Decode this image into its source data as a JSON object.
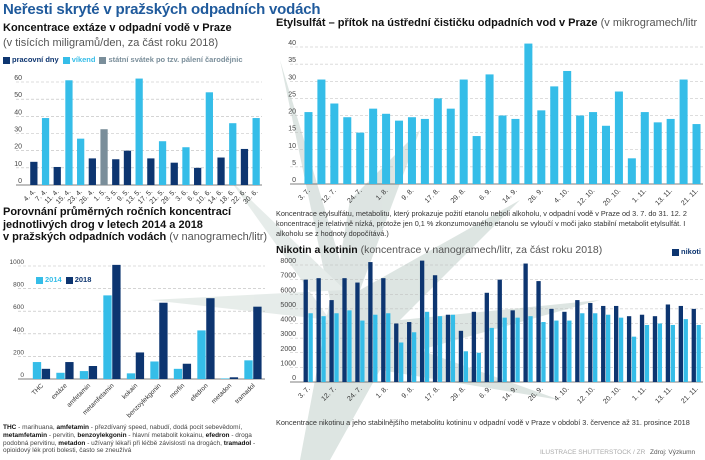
{
  "main_title": "Neřesti skryté v pražských odpadních vodách",
  "colors": {
    "dark": "#0d3570",
    "light": "#35bde8",
    "gray": "#7a8e9a",
    "title": "#1f5a9c"
  },
  "chart_data": [
    {
      "id": "extaze",
      "type": "bar",
      "title": "Koncentrace extáze v odpadní vodě v Praze",
      "subtitle": "(v tisících miligramů/den, za část roku 2018)",
      "legend": [
        "pracovní dny",
        "víkend",
        "státní svátek po tzv. pálení čarodějnic"
      ],
      "categories": [
        "4. 4.",
        "7. 4.",
        "11. 4.",
        "15. 4.",
        "23. 4.",
        "26. 4.",
        "1. 5.",
        "3. 5.",
        "9. 5.",
        "13. 5.",
        "17. 5.",
        "21. 5.",
        "29. 5.",
        "3. 6.",
        "6. 6.",
        "10. 6.",
        "14. 6.",
        "18. 6.",
        "22. 6.",
        "30. 6."
      ],
      "values": [
        13.5,
        39,
        10.5,
        61,
        27,
        15.5,
        32.5,
        15,
        20,
        62,
        15.5,
        25.5,
        13,
        22,
        10,
        54,
        16,
        36,
        21,
        39
      ],
      "value_type": [
        0,
        1,
        0,
        1,
        1,
        0,
        2,
        0,
        0,
        1,
        0,
        1,
        0,
        1,
        0,
        1,
        0,
        1,
        0,
        1
      ],
      "ylim": [
        0,
        60
      ],
      "yticks": [
        0,
        10,
        20,
        30,
        40,
        50,
        60
      ],
      "grid": true,
      "legend_position": "top-left"
    },
    {
      "id": "etylsulfat",
      "type": "bar",
      "title": "Etylsulfát – přítok na ústřední čističku odpadních vod v Praze",
      "subtitle": "(v mikrogramech/litr",
      "tick_labels": [
        "3. 7.",
        "12. 7.",
        "24. 7.",
        "1. 8.",
        "9. 8.",
        "17. 8.",
        "29. 8.",
        "6. 9.",
        "14. 9.",
        "26. 9.",
        "4. 10.",
        "12. 10.",
        "20. 10.",
        "1. 11.",
        "13. 11.",
        "21. 11."
      ],
      "values": [
        21,
        30.5,
        23.5,
        19.5,
        15,
        22,
        20.5,
        18.5,
        19.5,
        19,
        25,
        22,
        30.5,
        14,
        32,
        20,
        19,
        41,
        21.5,
        28.5,
        33,
        20,
        21,
        17,
        27,
        7.5,
        21,
        18,
        19,
        30.5,
        17.5
      ],
      "ylim": [
        0,
        40
      ],
      "yticks": [
        0,
        5,
        10,
        15,
        20,
        25,
        30,
        35,
        40
      ],
      "grid": true,
      "caption": [
        "Koncentrace etylsulfátu, metabolitu, který prokazuje požití etanolu neboli alkoholu, v odpadní vodě v Praze od 3. 7. do 31. 12. 2",
        "koncentrace je relativně nízká, protože jen 0,1 % zkonzumovaného etanolu se vyloučí v moči jako stabilní metabolit etylsulfát. I",
        "alkoholu se z hodnoty dopočítává.)"
      ]
    },
    {
      "id": "drogy",
      "type": "bar",
      "title_lines": [
        "Porovnání průměrných ročních koncentrací",
        "jednotlivých drog v letech 2014 a 2018",
        "v pražských odpadních vodách"
      ],
      "subtitle": "(v nanogramech/litr)",
      "categories": [
        "THC",
        "extáze",
        "amfetamin",
        "metamfetamin",
        "kokain",
        "benzoylekgonin",
        "morfin",
        "efedron",
        "metadon",
        "tramadol"
      ],
      "series": [
        {
          "name": "2014",
          "values": [
            150,
            55,
            70,
            740,
            50,
            155,
            90,
            430,
            5,
            165
          ]
        },
        {
          "name": "2018",
          "values": [
            90,
            150,
            115,
            1010,
            235,
            675,
            135,
            715,
            15,
            640
          ]
        }
      ],
      "ylim": [
        0,
        1000
      ],
      "yticks": [
        0,
        200,
        400,
        600,
        800,
        1000
      ],
      "grid": true,
      "legend_position": "top-left",
      "footnote": [
        {
          "term": "THC",
          "text": " - marihuana, "
        },
        {
          "term": "amfetamin",
          "text": " - přezdívaný speed, nabudí, dodá pocit sebevědomí,"
        },
        {
          "term": "metamfetamin",
          "text": " - pervitin, "
        },
        {
          "term": "benzoylekgonin",
          "text": " - hlavní metabolit kokainu, "
        },
        {
          "term": "efedron",
          "text": " - droga podobná pervitinu, "
        },
        {
          "term": "metadon",
          "text": " - užívaný lékaři při léčbě závislostí na drogách,"
        },
        {
          "term": "tramadol",
          "text": " - opioidový lék proti bolesti, často se zneužívá"
        }
      ]
    },
    {
      "id": "nikotin",
      "type": "bar",
      "title": "Nikotin a kotinin",
      "subtitle": "(koncentrace v nanogramech/litr, za část roku 2018)",
      "legend": [
        "nikoti"
      ],
      "tick_labels": [
        "3. 7.",
        "12. 7.",
        "24. 7.",
        "1. 8.",
        "9. 8.",
        "17. 8.",
        "29. 8.",
        "6. 9.",
        "14. 9.",
        "26. 9.",
        "4. 10.",
        "12. 10.",
        "20. 10.",
        "1. 11.",
        "13. 11.",
        "21. 11."
      ],
      "series": [
        {
          "name": "nikoti",
          "values": [
            7000,
            7100,
            5600,
            7100,
            6800,
            8200,
            7100,
            4000,
            4100,
            8300,
            7300,
            4600,
            3500,
            4800,
            6100,
            7000,
            4900,
            8100,
            6900,
            5000,
            4800,
            5600,
            5400,
            5200,
            5200,
            4500,
            4600,
            4500,
            5300,
            5200,
            5000
          ]
        },
        {
          "values": [
            4700,
            4500,
            4700,
            4900,
            4200,
            4600,
            4700,
            2700,
            3400,
            4800,
            4500,
            4600,
            2100,
            2000,
            3700,
            4400,
            4400,
            4500,
            4100,
            4200,
            4200,
            4700,
            4700,
            4600,
            4400,
            3100,
            3900,
            4000,
            3900,
            4300,
            3900
          ]
        }
      ],
      "ylim": [
        0,
        8000
      ],
      "yticks": [
        0,
        1000,
        2000,
        3000,
        4000,
        5000,
        6000,
        7000,
        8000
      ],
      "grid": true,
      "legend_position": "top-right",
      "caption": "Koncentrace nikotinu a jeho stabilnějšího metabolitu kotininu v odpadní vodě v Praze v období 3. července až 31. prosince 2018"
    }
  ],
  "credits": {
    "illustration": "ILUSTRACE SHUTTERSTOCK / ZR",
    "source": "Zdroj: Výzkumn"
  }
}
